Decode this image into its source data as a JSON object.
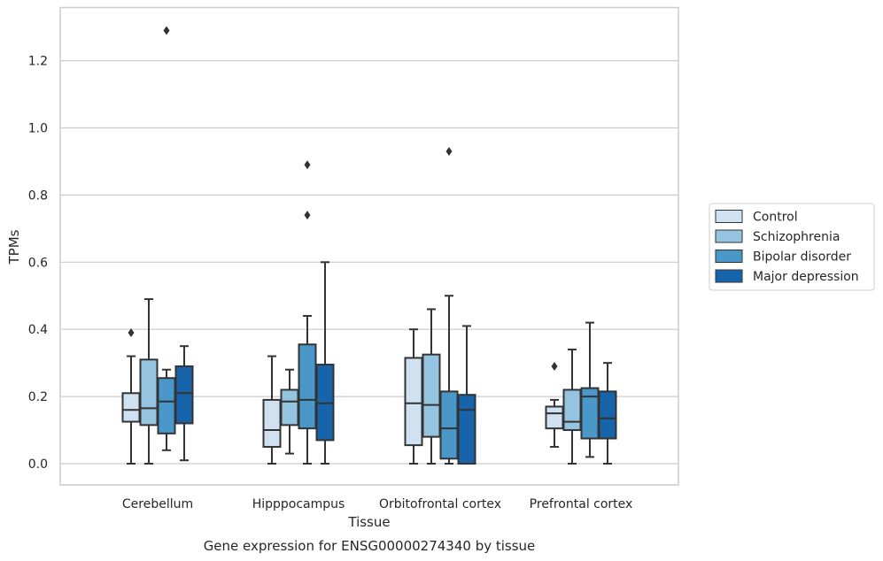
{
  "caption": "Gene expression for ENSG00000274340 by tissue",
  "colors": {
    "grid": "#cccccc",
    "frame": "#cccccc",
    "line": "#333333",
    "series": [
      "#d0e1f2",
      "#94c4df",
      "#4a98c9",
      "#1764ab"
    ]
  },
  "chart_data": {
    "type": "boxplot",
    "title": "",
    "xlabel": "Tissue",
    "ylabel": "TPMs",
    "ylim": [
      -0.065,
      1.365
    ],
    "yticks": [
      0.0,
      0.2,
      0.4,
      0.6,
      0.8,
      1.0,
      1.2
    ],
    "ytick_labels": [
      "0.0",
      "0.2",
      "0.4",
      "0.6",
      "0.8",
      "1.0",
      "1.2"
    ],
    "grid": true,
    "legend_position": "right",
    "categories": [
      "Cerebellum",
      "Hipppocampus",
      "Orbitofrontal cortex",
      "Prefrontal cortex"
    ],
    "series": [
      {
        "name": "Control",
        "boxes": [
          {
            "whislo": 0.0,
            "q1": 0.125,
            "med": 0.16,
            "q3": 0.21,
            "whishi": 0.32,
            "fliers": [
              0.39
            ]
          },
          {
            "whislo": 0.0,
            "q1": 0.05,
            "med": 0.1,
            "q3": 0.19,
            "whishi": 0.32,
            "fliers": []
          },
          {
            "whislo": 0.0,
            "q1": 0.055,
            "med": 0.18,
            "q3": 0.315,
            "whishi": 0.4,
            "fliers": []
          },
          {
            "whislo": 0.05,
            "q1": 0.105,
            "med": 0.15,
            "q3": 0.17,
            "whishi": 0.19,
            "fliers": [
              0.29
            ]
          }
        ]
      },
      {
        "name": "Schizophrenia",
        "boxes": [
          {
            "whislo": 0.0,
            "q1": 0.115,
            "med": 0.165,
            "q3": 0.31,
            "whishi": 0.49,
            "fliers": []
          },
          {
            "whislo": 0.03,
            "q1": 0.115,
            "med": 0.185,
            "q3": 0.22,
            "whishi": 0.28,
            "fliers": []
          },
          {
            "whislo": 0.0,
            "q1": 0.08,
            "med": 0.175,
            "q3": 0.325,
            "whishi": 0.46,
            "fliers": []
          },
          {
            "whislo": 0.0,
            "q1": 0.1,
            "med": 0.125,
            "q3": 0.22,
            "whishi": 0.34,
            "fliers": []
          }
        ]
      },
      {
        "name": "Bipolar disorder",
        "boxes": [
          {
            "whislo": 0.04,
            "q1": 0.09,
            "med": 0.185,
            "q3": 0.255,
            "whishi": 0.28,
            "fliers": [
              1.29
            ]
          },
          {
            "whislo": 0.0,
            "q1": 0.105,
            "med": 0.19,
            "q3": 0.355,
            "whishi": 0.44,
            "fliers": [
              0.74,
              0.89
            ]
          },
          {
            "whislo": 0.0,
            "q1": 0.015,
            "med": 0.105,
            "q3": 0.215,
            "whishi": 0.5,
            "fliers": [
              0.93
            ]
          },
          {
            "whislo": 0.02,
            "q1": 0.075,
            "med": 0.2,
            "q3": 0.225,
            "whishi": 0.42,
            "fliers": []
          }
        ]
      },
      {
        "name": "Major depression",
        "boxes": [
          {
            "whislo": 0.01,
            "q1": 0.12,
            "med": 0.21,
            "q3": 0.29,
            "whishi": 0.35,
            "fliers": []
          },
          {
            "whislo": 0.0,
            "q1": 0.07,
            "med": 0.18,
            "q3": 0.295,
            "whishi": 0.6,
            "fliers": []
          },
          {
            "whislo": 0.0,
            "q1": 0.0,
            "med": 0.16,
            "q3": 0.205,
            "whishi": 0.41,
            "fliers": []
          },
          {
            "whislo": 0.0,
            "q1": 0.075,
            "med": 0.135,
            "q3": 0.215,
            "whishi": 0.3,
            "fliers": []
          }
        ]
      }
    ]
  }
}
